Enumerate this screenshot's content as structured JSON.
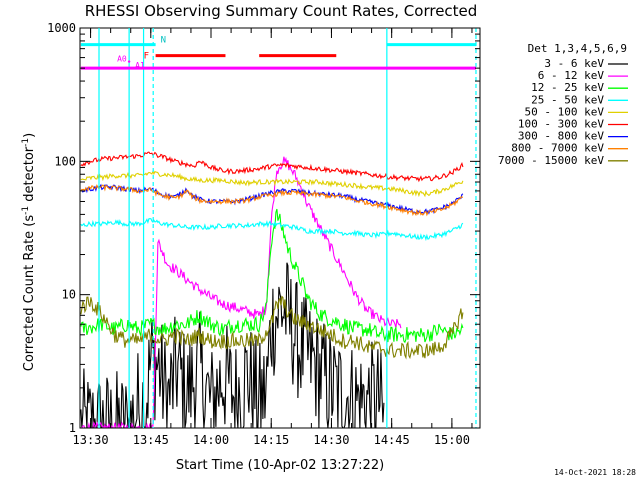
{
  "chart_data": {
    "type": "line",
    "title": "RHESSI Observing Summary Count Rates, Corrected",
    "xlabel": "Start Time (10-Apr-02 13:27:22)",
    "ylabel_prefix": "Corrected Count Rate (s",
    "ylabel_sup1": "-1",
    "ylabel_mid": " detector",
    "ylabel_sup2": "-1",
    "ylabel_suffix": ")",
    "y_scale": "log",
    "ylim": [
      1,
      1000
    ],
    "xlim": [
      13.4561,
      15.1167
    ],
    "y_ticks": [
      {
        "value": 1,
        "label": "1"
      },
      {
        "value": 10,
        "label": "10"
      },
      {
        "value": 100,
        "label": "100"
      },
      {
        "value": 1000,
        "label": "1000"
      }
    ],
    "x_ticks": [
      {
        "value": 13.5,
        "label": "13:30"
      },
      {
        "value": 13.75,
        "label": "13:45"
      },
      {
        "value": 14.0,
        "label": "14:00"
      },
      {
        "value": 14.25,
        "label": "14:15"
      },
      {
        "value": 14.5,
        "label": "14:30"
      },
      {
        "value": 14.75,
        "label": "14:45"
      },
      {
        "value": 15.0,
        "label": "15:00"
      }
    ],
    "legend_header": "Det 1,3,4,5,6,9",
    "legend_placement": "right",
    "grid": false,
    "series": [
      {
        "name": "3 - 6 keV",
        "color": "#000000",
        "x": [
          13.46,
          13.66,
          13.7,
          13.73,
          13.75,
          13.78,
          13.82,
          13.86,
          13.9,
          13.95,
          14.0,
          14.05,
          14.1,
          14.15,
          14.2,
          14.23,
          14.25,
          14.27,
          14.29,
          14.31,
          14.33,
          14.35,
          14.37,
          14.4,
          14.43,
          14.46,
          14.5,
          14.55,
          14.6,
          14.65,
          14.7,
          14.72
        ],
        "y": [
          1,
          1,
          1.5,
          1.6,
          3.2,
          3.0,
          1.6,
          2.8,
          1.8,
          2.8,
          1.5,
          2.5,
          1.7,
          2.5,
          1.6,
          1.9,
          6.0,
          7.0,
          8.0,
          7.5,
          6.0,
          5.0,
          4.0,
          3.5,
          3.0,
          2.5,
          2.0,
          1.8,
          1.6,
          1.6,
          1.6,
          1
        ]
      },
      {
        "name": "6 - 12 keV",
        "color": "#ff00ff",
        "x": [
          13.46,
          13.76,
          13.78,
          13.82,
          13.86,
          13.9,
          13.95,
          14.0,
          14.05,
          14.1,
          14.15,
          14.2,
          14.23,
          14.25,
          14.27,
          14.28,
          14.3,
          14.32,
          14.35,
          14.38,
          14.4,
          14.43,
          14.46,
          14.5,
          14.55,
          14.6,
          14.65,
          14.68,
          14.7,
          14.74,
          14.79
        ],
        "y": [
          1,
          1,
          25,
          17,
          15,
          13,
          11,
          9.5,
          8.5,
          8,
          7.5,
          7,
          8,
          35,
          80,
          90,
          100,
          95,
          78,
          60,
          48,
          38,
          30,
          22,
          15,
          10,
          7.5,
          7,
          6.5,
          6,
          6
        ]
      },
      {
        "name": "12 - 25 keV",
        "color": "#00ff00",
        "x": [
          13.46,
          13.55,
          13.6,
          13.65,
          13.7,
          13.75,
          13.8,
          13.85,
          13.9,
          13.95,
          14.0,
          14.05,
          14.1,
          14.15,
          14.2,
          14.23,
          14.25,
          14.27,
          14.28,
          14.3,
          14.32,
          14.35,
          14.38,
          14.4,
          14.43,
          14.46,
          14.5,
          14.55,
          14.6,
          14.65,
          14.7,
          14.75,
          14.8,
          14.85,
          14.9,
          14.95,
          15.0,
          15.05
        ],
        "y": [
          5.5,
          6,
          5.5,
          6,
          5.5,
          6,
          5.5,
          6,
          6,
          7,
          6,
          5.5,
          6,
          6,
          6,
          8,
          25,
          40,
          38,
          30,
          22,
          16,
          12,
          9.5,
          8,
          7,
          6.5,
          6,
          5.5,
          5.5,
          5,
          5,
          5,
          5,
          5,
          5.5,
          5,
          5.5
        ]
      },
      {
        "name": "25 - 50 keV",
        "color": "#00ffff",
        "x": [
          13.46,
          13.5,
          13.55,
          13.6,
          13.65,
          13.7,
          13.75,
          13.8,
          13.85,
          13.9,
          13.95,
          14.0,
          14.05,
          14.1,
          14.15,
          14.2,
          14.25,
          14.3,
          14.35,
          14.4,
          14.45,
          14.5,
          14.55,
          14.6,
          14.65,
          14.7,
          14.75,
          14.8,
          14.85,
          14.9,
          14.95,
          15.0,
          15.05
        ],
        "y": [
          33,
          34,
          34,
          35,
          34,
          34,
          36,
          34,
          33,
          32,
          32,
          32,
          33,
          33,
          33,
          34,
          34,
          33,
          32,
          30,
          30,
          30,
          29,
          29,
          28,
          28,
          29,
          28,
          27,
          27,
          28,
          30,
          34
        ]
      },
      {
        "name": "50 - 100 keV",
        "color": "#e0d000",
        "x": [
          13.46,
          13.5,
          13.55,
          13.6,
          13.65,
          13.7,
          13.75,
          13.8,
          13.85,
          13.9,
          13.95,
          14.0,
          14.05,
          14.1,
          14.15,
          14.2,
          14.25,
          14.3,
          14.35,
          14.4,
          14.45,
          14.5,
          14.55,
          14.6,
          14.65,
          14.7,
          14.75,
          14.8,
          14.85,
          14.9,
          14.95,
          15.0,
          15.05
        ],
        "y": [
          72,
          75,
          76,
          78,
          78,
          78,
          82,
          80,
          78,
          74,
          72,
          72,
          72,
          70,
          69,
          70,
          70,
          70,
          70,
          70,
          70,
          68,
          67,
          66,
          64,
          63,
          62,
          60,
          58,
          57,
          60,
          65,
          72
        ]
      },
      {
        "name": "100 - 300 keV",
        "color": "#ff0000",
        "x": [
          13.46,
          13.5,
          13.55,
          13.6,
          13.65,
          13.7,
          13.75,
          13.8,
          13.85,
          13.9,
          13.93,
          13.95,
          13.98,
          14.0,
          14.05,
          14.1,
          14.15,
          14.2,
          14.25,
          14.3,
          14.35,
          14.4,
          14.45,
          14.5,
          14.55,
          14.6,
          14.65,
          14.7,
          14.75,
          14.8,
          14.85,
          14.9,
          14.95,
          15.0,
          15.05
        ],
        "y": [
          95,
          100,
          104,
          106,
          108,
          110,
          115,
          108,
          100,
          95,
          92,
          100,
          95,
          90,
          85,
          84,
          86,
          88,
          92,
          94,
          92,
          90,
          88,
          86,
          84,
          82,
          80,
          78,
          76,
          75,
          74,
          74,
          76,
          82,
          95
        ]
      },
      {
        "name": "300 - 800 keV",
        "color": "#0000ff",
        "x": [
          13.46,
          13.5,
          13.55,
          13.6,
          13.65,
          13.7,
          13.75,
          13.8,
          13.85,
          13.88,
          13.9,
          13.92,
          13.95,
          14.0,
          14.05,
          14.1,
          14.15,
          14.2,
          14.25,
          14.3,
          14.35,
          14.4,
          14.45,
          14.5,
          14.55,
          14.6,
          14.65,
          14.7,
          14.75,
          14.8,
          14.85,
          14.9,
          14.95,
          15.0,
          15.05
        ],
        "y": [
          60,
          62,
          64,
          64,
          62,
          60,
          62,
          56,
          54,
          58,
          62,
          56,
          52,
          50,
          50,
          50,
          52,
          55,
          58,
          60,
          60,
          58,
          57,
          56,
          55,
          52,
          50,
          48,
          46,
          44,
          42,
          42,
          44,
          48,
          56
        ]
      },
      {
        "name": "800 - 7000 keV",
        "color": "#ff8000",
        "x": [
          13.46,
          13.5,
          13.55,
          13.6,
          13.65,
          13.7,
          13.75,
          13.8,
          13.85,
          13.88,
          13.9,
          13.92,
          13.95,
          14.0,
          14.05,
          14.1,
          14.15,
          14.2,
          14.25,
          14.3,
          14.35,
          14.4,
          14.45,
          14.5,
          14.55,
          14.6,
          14.65,
          14.7,
          14.75,
          14.8,
          14.85,
          14.9,
          14.95,
          15.0,
          15.05
        ],
        "y": [
          62,
          63,
          64,
          63,
          62,
          60,
          61,
          55,
          53,
          56,
          60,
          55,
          51,
          50,
          50,
          50,
          51,
          54,
          56,
          58,
          58,
          57,
          56,
          55,
          54,
          51,
          49,
          47,
          45,
          43,
          41,
          41,
          43,
          47,
          55
        ]
      },
      {
        "name": "7000 - 15000 keV",
        "color": "#808000",
        "x": [
          13.46,
          13.5,
          13.55,
          13.6,
          13.65,
          13.7,
          13.75,
          13.8,
          13.85,
          13.9,
          13.95,
          14.0,
          14.05,
          14.1,
          14.15,
          14.2,
          14.25,
          14.27,
          14.29,
          14.31,
          14.33,
          14.35,
          14.4,
          14.45,
          14.5,
          14.55,
          14.6,
          14.65,
          14.7,
          14.75,
          14.8,
          14.85,
          14.9,
          14.95,
          15.0,
          15.05
        ],
        "y": [
          8,
          9,
          7,
          5,
          4.5,
          4.5,
          5,
          4.5,
          5,
          4.5,
          5,
          4.5,
          4.5,
          4.5,
          4.5,
          4.5,
          6,
          8,
          9,
          8,
          7,
          6.5,
          6,
          5.5,
          5,
          4.5,
          4.5,
          4,
          4,
          3.8,
          3.8,
          3.8,
          3.8,
          4,
          5,
          8
        ]
      }
    ],
    "annotations": {
      "dashed_lines_x": [
        13.76,
        15.1
      ],
      "solid_lines_x": [
        13.535,
        13.66,
        13.72,
        14.73
      ],
      "cyan_bars": [
        {
          "label": "N",
          "x0": 13.46,
          "x1": 13.77,
          "y": 750
        },
        {
          "label": "",
          "x0": 14.73,
          "x1": 15.1,
          "y": 750
        }
      ],
      "red_bars": [
        {
          "label": "F",
          "x0": 13.77,
          "x1": 14.06,
          "y": 620
        },
        {
          "label": "",
          "x0": 14.2,
          "x1": 14.52,
          "y": 620
        }
      ],
      "magenta_bar": {
        "label": "",
        "x0": 13.46,
        "x1": 15.1,
        "y": 500
      },
      "attenuator_labels": [
        {
          "label": "A0",
          "x": 13.61,
          "y": 560
        },
        {
          "label": "A1",
          "x": 13.685,
          "y": 500
        }
      ],
      "dot_marker": {
        "x": 13.66,
        "y": 560
      }
    },
    "footer_date": "14-Oct-2021 18:28"
  }
}
